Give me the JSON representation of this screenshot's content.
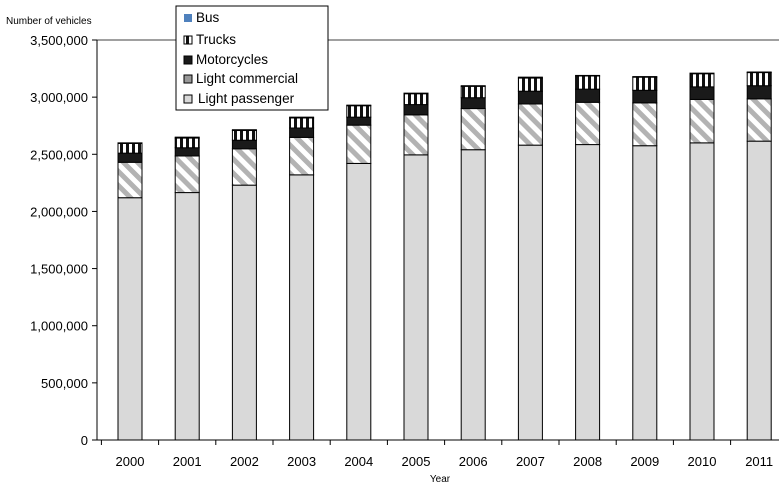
{
  "chart_data": {
    "type": "bar",
    "stacked": true,
    "ylabel": "Number of vehicles",
    "xlabel": "Year",
    "ylim": [
      0,
      3500000
    ],
    "yticks": [
      "0",
      "500,000",
      "1,000,000",
      "1,500,000",
      "2,000,000",
      "2,500,000",
      "3,000,000",
      "3,500,000"
    ],
    "categories": [
      "2000",
      "2001",
      "2002",
      "2003",
      "2004",
      "2005",
      "2006",
      "2007",
      "2008",
      "2009",
      "2010",
      "2011"
    ],
    "legend_placement": "top-left",
    "gridlines": false,
    "series": [
      {
        "name": "Light passenger",
        "values": [
          2120000,
          2165000,
          2230000,
          2320000,
          2420000,
          2495000,
          2540000,
          2580000,
          2585000,
          2575000,
          2600000,
          2615000
        ]
      },
      {
        "name": "Light commercial",
        "values": [
          310000,
          320000,
          318000,
          328000,
          335000,
          350000,
          360000,
          360000,
          370000,
          375000,
          380000,
          370000
        ]
      },
      {
        "name": "Motorcycles",
        "values": [
          80000,
          72000,
          75000,
          82000,
          70000,
          90000,
          95000,
          112000,
          115000,
          110000,
          110000,
          115000
        ]
      },
      {
        "name": "Trucks",
        "values": [
          85000,
          85000,
          85000,
          88000,
          100000,
          95000,
          100000,
          115000,
          115000,
          115000,
          115000,
          115000
        ]
      },
      {
        "name": "Bus",
        "values": [
          5000,
          8000,
          7000,
          7000,
          5000,
          5000,
          5000,
          8000,
          5000,
          5000,
          5000,
          5000
        ]
      }
    ],
    "legend_order": [
      "Bus",
      "Trucks",
      "Motorcycles",
      "Light commercial",
      "Light passenger"
    ],
    "colors": {
      "Light passenger": "#d9d9d9",
      "Light commercial": "#bfbfbf",
      "Motorcycles": "#1a1a1a",
      "Trucks": "#111111",
      "Bus": "#4f81bd"
    }
  }
}
